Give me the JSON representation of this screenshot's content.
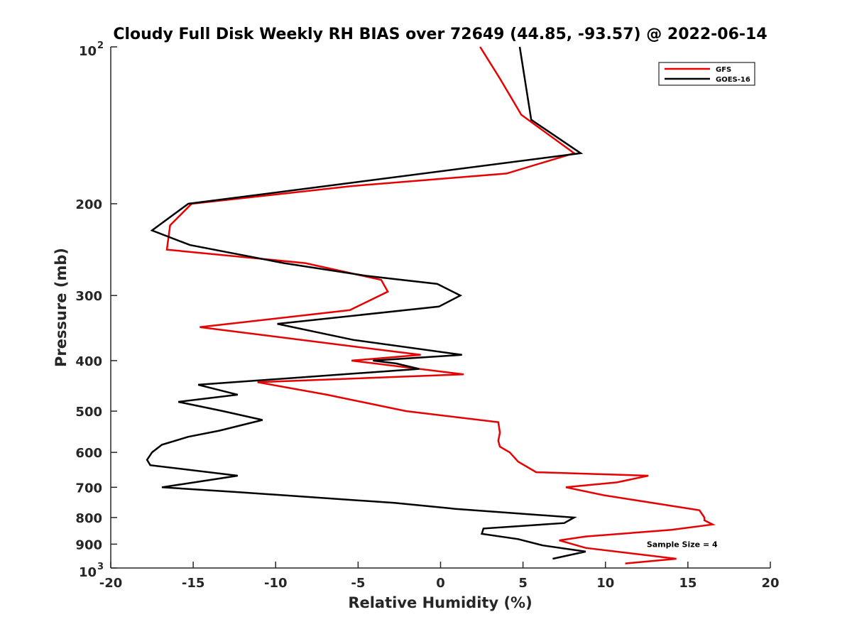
{
  "chart_data": {
    "type": "line",
    "title": "Cloudy Full Disk Weekly RH BIAS over 72649 (44.85, -93.57) @ 2022-06-14",
    "xlabel": "Relative Humidity (%)",
    "ylabel": "Pressure (mb)",
    "xlim": [
      -20,
      20
    ],
    "ylim": [
      100,
      1000
    ],
    "yscale": "log",
    "y_reversed": true,
    "grid": false,
    "legend_position": "top-right",
    "x_ticks": [
      {
        "value": -20,
        "label": "-20"
      },
      {
        "value": -15,
        "label": "-15"
      },
      {
        "value": -10,
        "label": "-10"
      },
      {
        "value": -5,
        "label": "-5"
      },
      {
        "value": 0,
        "label": "0"
      },
      {
        "value": 5,
        "label": "5"
      },
      {
        "value": 10,
        "label": "10"
      },
      {
        "value": 15,
        "label": "15"
      },
      {
        "value": 20,
        "label": "20"
      }
    ],
    "y_ticks": [
      {
        "value": 100,
        "label": "10",
        "sup": "2"
      },
      {
        "value": 200,
        "label": "200",
        "sup": ""
      },
      {
        "value": 300,
        "label": "300",
        "sup": ""
      },
      {
        "value": 400,
        "label": "400",
        "sup": ""
      },
      {
        "value": 500,
        "label": "500",
        "sup": ""
      },
      {
        "value": 600,
        "label": "600",
        "sup": ""
      },
      {
        "value": 700,
        "label": "700",
        "sup": ""
      },
      {
        "value": 800,
        "label": "800",
        "sup": ""
      },
      {
        "value": 900,
        "label": "900",
        "sup": ""
      },
      {
        "value": 1000,
        "label": "10",
        "sup": "3"
      }
    ],
    "series": [
      {
        "name": "GFS",
        "color": "#e60000",
        "points": [
          [
            2.4,
            100
          ],
          [
            3.6,
            115
          ],
          [
            4.9,
            135
          ],
          [
            8.1,
            160
          ],
          [
            4.0,
            175
          ],
          [
            -5.4,
            185
          ],
          [
            -15.1,
            200
          ],
          [
            -16.4,
            220
          ],
          [
            -16.6,
            245
          ],
          [
            -8.2,
            260
          ],
          [
            -3.6,
            280
          ],
          [
            -3.2,
            295
          ],
          [
            -5.5,
            320
          ],
          [
            -14.6,
            345
          ],
          [
            -1.2,
            390
          ],
          [
            -5.4,
            400
          ],
          [
            1.4,
            425
          ],
          [
            -11.1,
            440
          ],
          [
            -6.9,
            465
          ],
          [
            -4.8,
            480
          ],
          [
            -2.1,
            500
          ],
          [
            3.5,
            525
          ],
          [
            3.6,
            550
          ],
          [
            3.5,
            570
          ],
          [
            3.6,
            585
          ],
          [
            4.2,
            600
          ],
          [
            4.7,
            625
          ],
          [
            5.8,
            655
          ],
          [
            12.6,
            665
          ],
          [
            10.7,
            685
          ],
          [
            7.6,
            700
          ],
          [
            9.9,
            725
          ],
          [
            15.7,
            775
          ],
          [
            16.0,
            800
          ],
          [
            16.0,
            810
          ],
          [
            16.5,
            825
          ],
          [
            14.0,
            845
          ],
          [
            8.8,
            870
          ],
          [
            7.2,
            885
          ],
          [
            8.8,
            915
          ],
          [
            14.3,
            960
          ],
          [
            11.2,
            980
          ]
        ]
      },
      {
        "name": "GOES-16",
        "color": "#000000",
        "points": [
          [
            4.8,
            100
          ],
          [
            5.5,
            138
          ],
          [
            8.5,
            160
          ],
          [
            -5.8,
            183
          ],
          [
            -15.3,
            200
          ],
          [
            -17.5,
            225
          ],
          [
            -15.2,
            240
          ],
          [
            -9.5,
            260
          ],
          [
            -4.5,
            275
          ],
          [
            -0.2,
            285
          ],
          [
            1.2,
            300
          ],
          [
            -0.1,
            315
          ],
          [
            -9.9,
            340
          ],
          [
            -5.3,
            365
          ],
          [
            1.3,
            390
          ],
          [
            -4.1,
            400
          ],
          [
            -2.7,
            405
          ],
          [
            -1.3,
            415
          ],
          [
            -14.7,
            445
          ],
          [
            -12.3,
            465
          ],
          [
            -15.9,
            480
          ],
          [
            -13.2,
            500
          ],
          [
            -10.8,
            520
          ],
          [
            -13.4,
            545
          ],
          [
            -15.3,
            560
          ],
          [
            -16.9,
            580
          ],
          [
            -17.5,
            600
          ],
          [
            -17.8,
            620
          ],
          [
            -17.6,
            635
          ],
          [
            -12.3,
            665
          ],
          [
            -14.3,
            680
          ],
          [
            -16.9,
            700
          ],
          [
            -12.3,
            715
          ],
          [
            -2.8,
            750
          ],
          [
            0.9,
            770
          ],
          [
            8.1,
            800
          ],
          [
            7.5,
            820
          ],
          [
            2.6,
            840
          ],
          [
            2.5,
            860
          ],
          [
            4.7,
            880
          ],
          [
            6.2,
            905
          ],
          [
            8.8,
            930
          ],
          [
            6.8,
            960
          ]
        ]
      }
    ],
    "annotations": [
      {
        "text": "Sample Size = 4",
        "x": 12.5,
        "y": 900
      }
    ]
  }
}
